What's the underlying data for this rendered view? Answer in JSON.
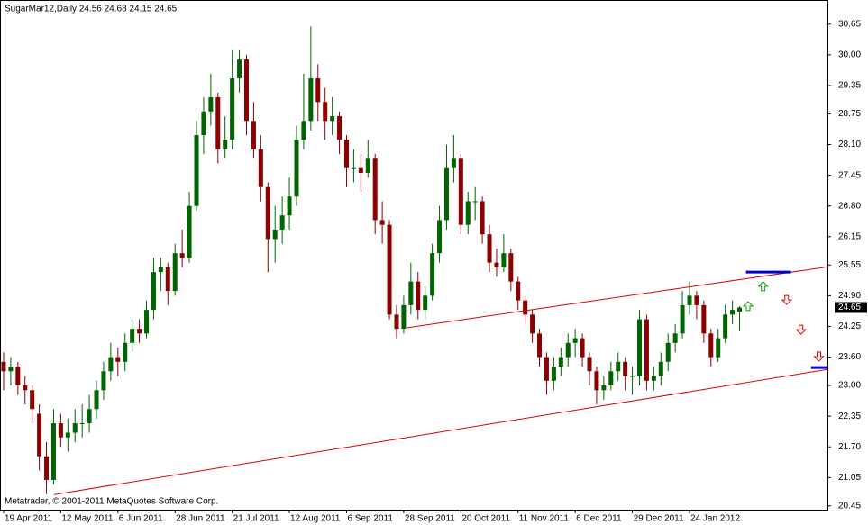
{
  "chart_data": {
    "type": "candlestick",
    "title": "SugarMar12,Daily  24.56 24.68 24.15 24.65",
    "footer": "Metatrader, © 2001-2011 MetaQuotes Software Corp.",
    "up_color": "#006400",
    "down_color": "#8b0000",
    "last_price": 24.65,
    "xlim": [
      -0.5,
      115.3
    ],
    "xticks": [
      {
        "value": 0,
        "label": "19 Apr 2011"
      },
      {
        "value": 8,
        "label": "12 May 2011"
      },
      {
        "value": 16,
        "label": "6 Jun 2011"
      },
      {
        "value": 24,
        "label": "28 Jun 2011"
      },
      {
        "value": 32,
        "label": "21 Jul 2011"
      },
      {
        "value": 40,
        "label": "12 Aug 2011"
      },
      {
        "value": 48,
        "label": "6 Sep 2011"
      },
      {
        "value": 56,
        "label": "28 Sep 2011"
      },
      {
        "value": 64,
        "label": "20 Oct 2011"
      },
      {
        "value": 72,
        "label": "11 Nov 2011"
      },
      {
        "value": 80,
        "label": "6 Dec 2011"
      },
      {
        "value": 88,
        "label": "29 Dec 2011"
      },
      {
        "value": 96,
        "label": "24 Jan 2012"
      }
    ],
    "ylim": [
      20.37,
      31.16
    ],
    "yticks": [
      30.65,
      {
        "value": 30,
        "label": "30.00"
      },
      29.35,
      28.75,
      {
        "value": 28.1,
        "label": "28.10"
      },
      27.45,
      {
        "value": 26.8,
        "label": "26.80"
      },
      26.15,
      25.55,
      {
        "value": 24.9,
        "label": "24.90"
      },
      24.25,
      {
        "value": 23.6,
        "label": "23.60"
      },
      {
        "value": 23,
        "label": "23.00"
      },
      22.35,
      {
        "value": 21.7,
        "label": "21.70"
      },
      21.05,
      20.45
    ],
    "candles": [
      [
        23.5,
        23.7,
        22.9,
        23.3
      ],
      [
        23.3,
        23.6,
        23.0,
        23.4
      ],
      [
        23.4,
        23.5,
        22.8,
        23.0
      ],
      [
        23.0,
        23.2,
        22.6,
        22.9
      ],
      [
        22.9,
        23.0,
        22.2,
        22.5
      ],
      [
        22.4,
        22.6,
        21.2,
        21.5
      ],
      [
        21.5,
        21.8,
        20.7,
        21.0
      ],
      [
        21.0,
        22.5,
        20.9,
        22.2
      ],
      [
        22.2,
        22.4,
        21.7,
        21.9
      ],
      [
        21.9,
        22.3,
        21.6,
        22.0
      ],
      [
        22.0,
        22.5,
        21.8,
        22.2
      ],
      [
        22.2,
        22.6,
        21.9,
        22.2
      ],
      [
        22.2,
        22.8,
        22.0,
        22.5
      ],
      [
        22.5,
        23.1,
        22.3,
        22.9
      ],
      [
        22.9,
        23.5,
        22.7,
        23.3
      ],
      [
        23.3,
        23.9,
        23.1,
        23.6
      ],
      [
        23.6,
        23.8,
        23.2,
        23.5
      ],
      [
        23.5,
        24.1,
        23.3,
        23.9
      ],
      [
        23.9,
        24.4,
        23.7,
        24.2
      ],
      [
        24.2,
        24.4,
        23.9,
        24.1
      ],
      [
        24.1,
        24.8,
        24.0,
        24.6
      ],
      [
        24.6,
        25.7,
        24.4,
        25.4
      ],
      [
        25.4,
        25.7,
        25.0,
        25.5
      ],
      [
        25.5,
        25.6,
        24.7,
        25.0
      ],
      [
        25.0,
        26.0,
        24.9,
        25.8
      ],
      [
        25.8,
        26.3,
        25.5,
        25.7
      ],
      [
        25.7,
        27.1,
        25.6,
        26.8
      ],
      [
        26.8,
        28.6,
        26.7,
        28.3
      ],
      [
        28.3,
        29.1,
        27.9,
        28.8
      ],
      [
        28.8,
        29.6,
        28.5,
        29.1
      ],
      [
        29.1,
        29.2,
        27.7,
        28.0
      ],
      [
        28.0,
        28.7,
        27.8,
        28.2
      ],
      [
        28.2,
        30.1,
        28.0,
        29.5
      ],
      [
        29.5,
        30.1,
        29.2,
        29.9
      ],
      [
        29.9,
        30.0,
        28.3,
        28.6
      ],
      [
        28.6,
        29.0,
        27.8,
        28.0
      ],
      [
        28.0,
        28.3,
        26.9,
        27.2
      ],
      [
        27.2,
        27.3,
        25.4,
        26.1
      ],
      [
        26.1,
        26.8,
        25.6,
        26.3
      ],
      [
        26.3,
        27.0,
        26.0,
        26.6
      ],
      [
        26.6,
        27.4,
        26.3,
        27.0
      ],
      [
        27.0,
        28.5,
        26.8,
        28.2
      ],
      [
        28.2,
        29.6,
        28.0,
        28.6
      ],
      [
        28.6,
        30.6,
        28.4,
        29.5
      ],
      [
        29.5,
        29.8,
        28.6,
        29.0
      ],
      [
        29.0,
        29.3,
        28.2,
        28.6
      ],
      [
        28.6,
        29.1,
        28.3,
        28.7
      ],
      [
        28.7,
        28.8,
        27.9,
        28.2
      ],
      [
        28.2,
        28.3,
        27.2,
        27.6
      ],
      [
        27.6,
        28.0,
        27.3,
        27.6
      ],
      [
        27.6,
        27.9,
        27.1,
        27.5
      ],
      [
        27.5,
        28.2,
        27.4,
        27.8
      ],
      [
        27.8,
        27.9,
        26.2,
        26.5
      ],
      [
        26.5,
        26.9,
        26.0,
        26.4
      ],
      [
        26.4,
        26.5,
        24.4,
        24.5
      ],
      [
        24.5,
        24.7,
        24.0,
        24.2
      ],
      [
        24.2,
        24.9,
        24.1,
        24.7
      ],
      [
        24.7,
        25.6,
        24.5,
        25.2
      ],
      [
        25.2,
        25.4,
        24.4,
        24.6
      ],
      [
        24.6,
        25.1,
        24.4,
        24.9
      ],
      [
        24.9,
        26.0,
        24.8,
        25.8
      ],
      [
        25.8,
        26.8,
        25.6,
        26.5
      ],
      [
        26.5,
        28.1,
        26.3,
        27.6
      ],
      [
        27.6,
        28.3,
        27.3,
        27.8
      ],
      [
        27.8,
        27.9,
        26.2,
        26.4
      ],
      [
        26.4,
        27.1,
        26.2,
        26.9
      ],
      [
        26.9,
        27.2,
        26.5,
        26.9
      ],
      [
        26.9,
        27.0,
        26.0,
        26.2
      ],
      [
        26.2,
        26.4,
        25.4,
        25.6
      ],
      [
        25.6,
        25.9,
        25.3,
        25.5
      ],
      [
        25.5,
        26.2,
        25.4,
        25.8
      ],
      [
        25.8,
        25.9,
        25.0,
        25.2
      ],
      [
        25.2,
        25.3,
        24.6,
        24.8
      ],
      [
        24.8,
        24.9,
        24.3,
        24.5
      ],
      [
        24.5,
        24.6,
        23.9,
        24.1
      ],
      [
        24.1,
        24.2,
        23.4,
        23.6
      ],
      [
        23.6,
        23.7,
        22.8,
        23.1
      ],
      [
        23.1,
        23.6,
        22.9,
        23.4
      ],
      [
        23.4,
        23.8,
        23.2,
        23.6
      ],
      [
        23.6,
        24.1,
        23.4,
        23.9
      ],
      [
        23.9,
        24.2,
        23.6,
        24.0
      ],
      [
        24.0,
        24.1,
        23.4,
        23.6
      ],
      [
        23.6,
        23.7,
        23.0,
        23.3
      ],
      [
        23.3,
        23.4,
        22.6,
        22.9
      ],
      [
        22.9,
        23.2,
        22.7,
        23.0
      ],
      [
        23.0,
        23.5,
        22.9,
        23.3
      ],
      [
        23.3,
        23.7,
        23.1,
        23.5
      ],
      [
        23.5,
        23.6,
        22.9,
        23.2
      ],
      [
        23.2,
        23.4,
        22.8,
        23.2
      ],
      [
        23.2,
        24.6,
        23.0,
        24.4
      ],
      [
        24.4,
        24.5,
        22.9,
        23.1
      ],
      [
        23.1,
        23.4,
        22.9,
        23.2
      ],
      [
        23.2,
        23.7,
        23.0,
        23.5
      ],
      [
        23.5,
        24.1,
        23.3,
        23.9
      ],
      [
        23.9,
        24.3,
        23.7,
        24.1
      ],
      [
        24.1,
        25.0,
        24.0,
        24.7
      ],
      [
        24.7,
        25.2,
        24.5,
        24.9
      ],
      [
        24.9,
        25.0,
        24.4,
        24.7
      ],
      [
        24.7,
        24.8,
        23.9,
        24.1
      ],
      [
        24.1,
        24.2,
        23.4,
        23.6
      ],
      [
        23.6,
        24.2,
        23.5,
        24.0
      ],
      [
        24.0,
        24.7,
        23.9,
        24.5
      ],
      [
        24.5,
        24.8,
        24.3,
        24.6
      ],
      [
        24.56,
        24.68,
        24.15,
        24.65
      ]
    ],
    "trendlines": [
      {
        "color": "#dd0000",
        "points": [
          [
            56.4,
            24.22
          ],
          [
            115.3,
            25.51
          ]
        ]
      },
      {
        "color": "#dd0000",
        "points": [
          [
            7.06,
            20.69
          ],
          [
            115.3,
            23.34
          ]
        ]
      },
      {
        "color": "#0000cc",
        "points": [
          [
            103.9,
            25.4
          ],
          [
            110.2,
            25.4
          ]
        ]
      },
      {
        "color": "#0000cc",
        "points": [
          [
            113,
            23.38
          ],
          [
            115.3,
            23.38
          ]
        ]
      }
    ],
    "signals": [
      {
        "dir": "up",
        "color": "#00a000",
        "x": 106.3,
        "y": 25.1
      },
      {
        "dir": "up",
        "color": "#00a000",
        "x": 104.2,
        "y": 24.68
      },
      {
        "dir": "down",
        "color": "#e00000",
        "x": 109.6,
        "y": 24.81
      },
      {
        "dir": "down",
        "color": "#e00000",
        "x": 111.6,
        "y": 24.18
      },
      {
        "dir": "down",
        "color": "#e00000",
        "x": 114.1,
        "y": 23.61
      }
    ]
  }
}
